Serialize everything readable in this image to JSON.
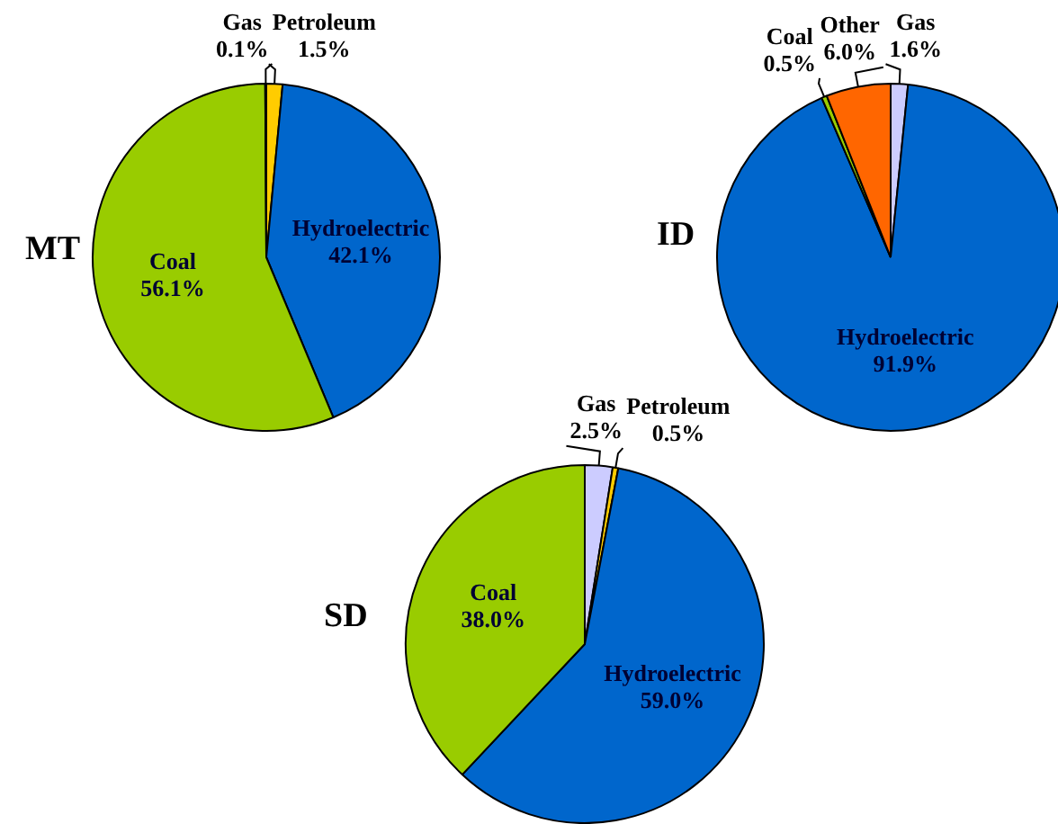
{
  "chart_data": [
    {
      "type": "pie",
      "title": "MT",
      "categories": [
        "Petroleum",
        "Hydroelectric",
        "Coal",
        "Gas"
      ],
      "values": [
        1.5,
        42.1,
        56.1,
        0.1
      ],
      "colors": [
        "#ffcc00",
        "#0066cc",
        "#99cc00",
        "#ccccff"
      ],
      "value_labels": [
        "1.5%",
        "42.1%",
        "56.1%",
        "0.1%"
      ]
    },
    {
      "type": "pie",
      "title": "ID",
      "categories": [
        "Gas",
        "Hydroelectric",
        "Coal",
        "Other"
      ],
      "values": [
        1.6,
        91.9,
        0.5,
        6.0
      ],
      "colors": [
        "#ccccff",
        "#0066cc",
        "#99cc00",
        "#ff6600"
      ],
      "value_labels": [
        "1.6%",
        "91.9%",
        "0.5%",
        "6.0%"
      ]
    },
    {
      "type": "pie",
      "title": "SD",
      "categories": [
        "Gas",
        "Petroleum",
        "Hydroelectric",
        "Coal"
      ],
      "values": [
        2.5,
        0.5,
        59.0,
        38.0
      ],
      "colors": [
        "#ccccff",
        "#ffcc00",
        "#0066cc",
        "#99cc00"
      ],
      "value_labels": [
        "2.5%",
        "0.5%",
        "59.0%",
        "38.0%"
      ]
    }
  ]
}
